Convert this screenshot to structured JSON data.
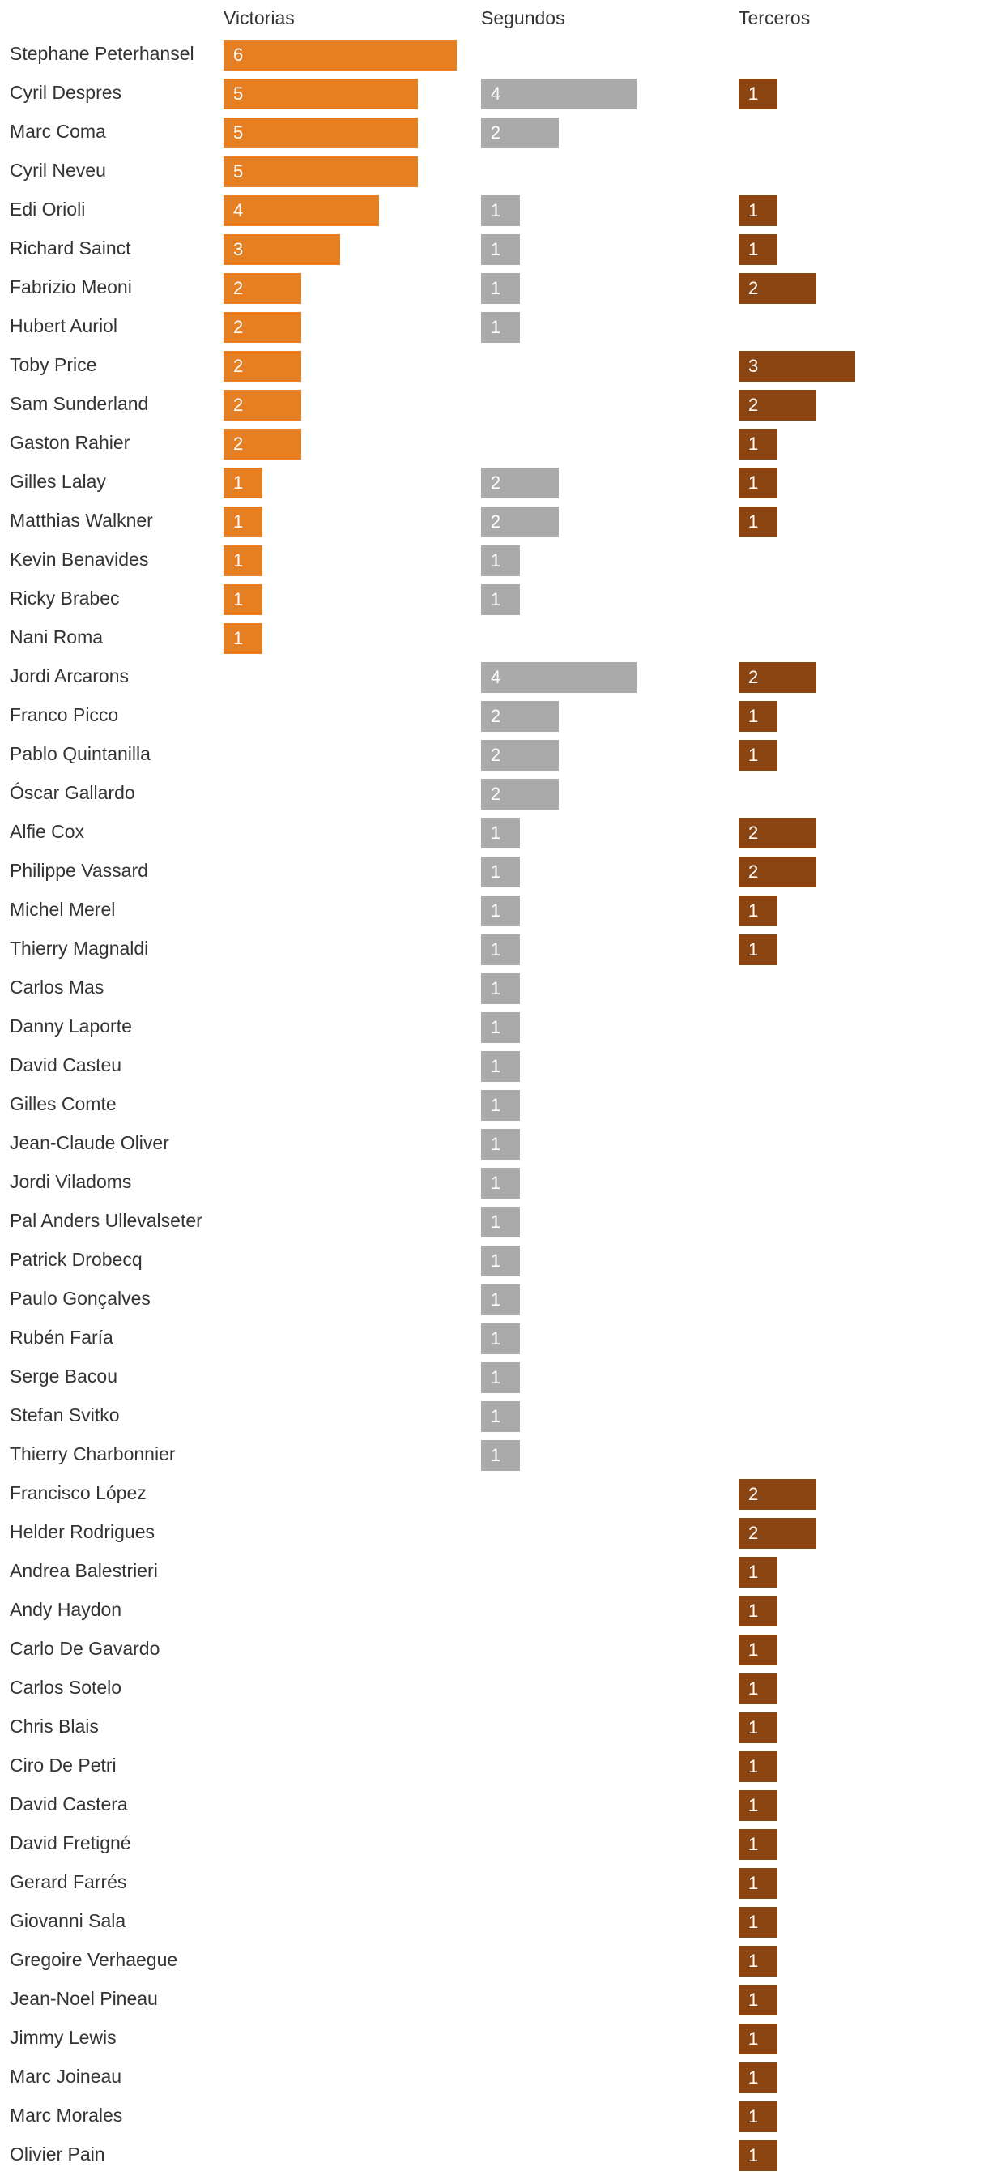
{
  "chart_data": {
    "type": "bar",
    "title": "",
    "columns": [
      "Victorias",
      "Segundos",
      "Terceros"
    ],
    "colors": {
      "Victorias": "#e67e22",
      "Segundos": "#aaaaaa",
      "Terceros": "#8b4513"
    },
    "categories": [
      "Stephane Peterhansel",
      "Cyril Despres",
      "Marc Coma",
      "Cyril Neveu",
      "Edi Orioli",
      "Richard Sainct",
      "Fabrizio Meoni",
      "Hubert Auriol",
      "Toby Price",
      "Sam Sunderland",
      "Gaston Rahier",
      "Gilles Lalay",
      "Matthias Walkner",
      "Kevin Benavides",
      "Ricky Brabec",
      "Nani Roma",
      "Jordi Arcarons",
      "Franco Picco",
      "Pablo Quintanilla",
      "Óscar Gallardo",
      "Alfie Cox",
      "Philippe Vassard",
      "Michel Merel",
      "Thierry Magnaldi",
      "Carlos Mas",
      "Danny Laporte",
      "David Casteu",
      "Gilles Comte",
      "Jean-Claude Oliver",
      "Jordi Viladoms",
      "Pal Anders Ullevalseter",
      "Patrick Drobecq",
      "Paulo Gonçalves",
      "Rubén Faría",
      "Serge Bacou",
      "Stefan Svitko",
      "Thierry Charbonnier",
      "Francisco López",
      "Helder Rodrigues",
      "Andrea Balestrieri",
      "Andy Haydon",
      "Carlo De Gavardo",
      "Carlos Sotelo",
      "Chris Blais",
      "Ciro De Petri",
      "David Castera",
      "David Fretigné",
      "Gerard Farrés",
      "Giovanni Sala",
      "Gregoire Verhaegue",
      "Jean-Noel Pineau",
      "Jimmy Lewis",
      "Marc Joineau",
      "Marc Morales",
      "Olivier Pain"
    ],
    "series": [
      {
        "name": "Victorias",
        "values": [
          6,
          5,
          5,
          5,
          4,
          3,
          2,
          2,
          2,
          2,
          2,
          1,
          1,
          1,
          1,
          1,
          0,
          0,
          0,
          0,
          0,
          0,
          0,
          0,
          0,
          0,
          0,
          0,
          0,
          0,
          0,
          0,
          0,
          0,
          0,
          0,
          0,
          0,
          0,
          0,
          0,
          0,
          0,
          0,
          0,
          0,
          0,
          0,
          0,
          0,
          0,
          0,
          0,
          0,
          0
        ]
      },
      {
        "name": "Segundos",
        "values": [
          0,
          4,
          2,
          0,
          1,
          1,
          1,
          1,
          0,
          0,
          0,
          2,
          2,
          1,
          1,
          0,
          4,
          2,
          2,
          2,
          1,
          1,
          1,
          1,
          1,
          1,
          1,
          1,
          1,
          1,
          1,
          1,
          1,
          1,
          1,
          1,
          1,
          0,
          0,
          0,
          0,
          0,
          0,
          0,
          0,
          0,
          0,
          0,
          0,
          0,
          0,
          0,
          0,
          0,
          0
        ]
      },
      {
        "name": "Terceros",
        "values": [
          0,
          1,
          0,
          0,
          1,
          1,
          2,
          0,
          3,
          2,
          1,
          1,
          1,
          0,
          0,
          0,
          2,
          1,
          1,
          0,
          2,
          2,
          1,
          1,
          0,
          0,
          0,
          0,
          0,
          0,
          0,
          0,
          0,
          0,
          0,
          0,
          0,
          2,
          2,
          1,
          1,
          1,
          1,
          1,
          1,
          1,
          1,
          1,
          1,
          1,
          1,
          1,
          1,
          1,
          1
        ]
      }
    ]
  }
}
